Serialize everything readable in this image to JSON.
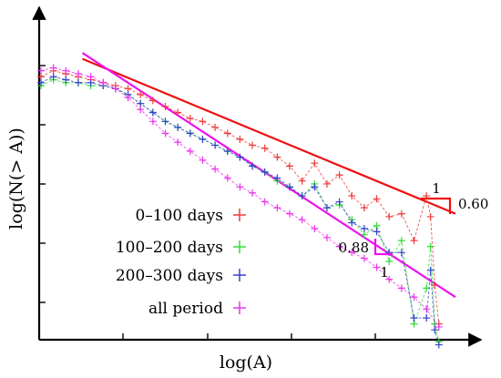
{
  "chart_data": {
    "type": "scatter",
    "title": "",
    "xlabel": "log(A)",
    "ylabel": "log(N(> A))",
    "scale": "log-log",
    "xlim": [
      0,
      100
    ],
    "ylim": [
      0,
      100
    ],
    "legend_position": "bottom-left",
    "axis_style": "arrows, inward ticks, no tick labels",
    "series": [
      {
        "name": "0–100 days",
        "color": "#ee3b3b",
        "marker": "+",
        "x": [
          0,
          3,
          6,
          9,
          12,
          15,
          18,
          21,
          24,
          27,
          30,
          33,
          36,
          39,
          42,
          45,
          48,
          51,
          54,
          57,
          60,
          63,
          66,
          69,
          72,
          75,
          78,
          81,
          84,
          87,
          90,
          93,
          94,
          95,
          96
        ],
        "y": [
          88,
          90,
          89,
          88,
          87,
          86,
          85,
          84,
          82,
          80,
          78,
          76,
          74,
          73,
          71,
          69,
          67,
          65,
          64,
          61,
          58,
          53,
          59,
          52,
          55,
          48,
          44,
          47,
          41,
          42,
          33,
          48,
          41,
          18,
          5
        ]
      },
      {
        "name": "100–200 days",
        "color": "#33dd33",
        "marker": "+",
        "x": [
          0,
          3,
          6,
          9,
          12,
          15,
          18,
          21,
          24,
          27,
          30,
          33,
          36,
          39,
          42,
          45,
          48,
          51,
          54,
          57,
          60,
          63,
          66,
          69,
          72,
          75,
          78,
          81,
          84,
          87,
          90,
          93,
          94,
          95,
          96
        ],
        "y": [
          85,
          87,
          86,
          86,
          85,
          85,
          84,
          82,
          79,
          76,
          73,
          71,
          69,
          67,
          65,
          63,
          61,
          58,
          56,
          53,
          51,
          48,
          52,
          44,
          45,
          40,
          35,
          38,
          26,
          33,
          5,
          17,
          31,
          5,
          -1
        ]
      },
      {
        "name": "200–300 days",
        "color": "#3344cc",
        "marker": "+",
        "x": [
          0,
          3,
          6,
          9,
          12,
          15,
          18,
          21,
          24,
          27,
          30,
          33,
          36,
          39,
          42,
          45,
          48,
          51,
          54,
          57,
          60,
          63,
          66,
          69,
          72,
          75,
          78,
          81,
          84,
          87,
          90,
          93,
          94,
          95,
          96
        ],
        "y": [
          86,
          88,
          87,
          86,
          86,
          85,
          84,
          82,
          79,
          76,
          73,
          71,
          69,
          67,
          65,
          63,
          61,
          58,
          56,
          54,
          51,
          48,
          51,
          44,
          46,
          39,
          37,
          36,
          29,
          29,
          7,
          7,
          23,
          3,
          -2
        ]
      },
      {
        "name": "all period",
        "color": "#ee33ee",
        "marker": "+",
        "x": [
          0,
          3,
          6,
          9,
          12,
          15,
          18,
          21,
          24,
          27,
          30,
          33,
          36,
          39,
          42,
          45,
          48,
          51,
          54,
          57,
          60,
          63,
          66,
          69,
          72,
          75,
          78,
          81,
          84,
          87,
          90,
          93,
          96
        ],
        "y": [
          90,
          91,
          90,
          89,
          88,
          86,
          84,
          81,
          77,
          73,
          69,
          66,
          63,
          60,
          57,
          54,
          51,
          49,
          46,
          44,
          42,
          40,
          37,
          34,
          31,
          29,
          27,
          24,
          20,
          17,
          14,
          10,
          4
        ]
      }
    ],
    "fit_lines": [
      {
        "color": "#ee1111",
        "x": [
          10,
          100
        ],
        "y": [
          94,
          42
        ],
        "slope_label": "0.60",
        "run_label": "1"
      },
      {
        "color": "#ee11ee",
        "x": [
          10,
          100
        ],
        "y": [
          96,
          14
        ],
        "slope_label": "0.88",
        "run_label": "1"
      }
    ]
  }
}
